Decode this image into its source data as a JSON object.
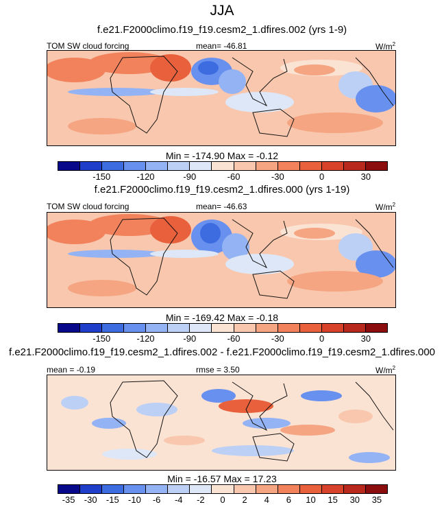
{
  "figure": {
    "season": "JJA"
  },
  "panels": [
    {
      "case": "f.e21.F2000climo.f19_f19.cesm2_1.dfires.002 (yrs 1-9)",
      "variable": "TOM SW cloud forcing",
      "mean_label": "mean= -46.81",
      "units": "W/m",
      "units_exp": "2",
      "stats": "Min = -174.90 Max =  -0.12",
      "colorbar_ticks": [
        "-150",
        "-120",
        "-90",
        "-60",
        "-30",
        "0",
        "30"
      ]
    },
    {
      "case": "f.e21.F2000climo.f19_f19.cesm2_1.dfires.000 (yrs 1-19)",
      "variable": "TOM SW cloud forcing",
      "mean_label": "mean= -46.63",
      "units": "W/m",
      "units_exp": "2",
      "stats": "Min = -169.42 Max =  -0.18",
      "colorbar_ticks": [
        "-150",
        "-120",
        "-90",
        "-60",
        "-30",
        "0",
        "30"
      ]
    },
    {
      "case": "f.e21.F2000climo.f19_f19.cesm2_1.dfires.002 - f.e21.F2000climo.f19_f19.cesm2_1.dfires.000",
      "mean_label": "mean =  -0.19",
      "rmse_label": "rmse =   3.50",
      "units": "W/m",
      "units_exp": "2",
      "stats": "Min = -16.57 Max =  17.23",
      "colorbar_ticks": [
        "-35",
        "-30",
        "-15",
        "-10",
        "-6",
        "-4",
        "-2",
        "0",
        "2",
        "4",
        "6",
        "10",
        "15",
        "30",
        "35"
      ]
    }
  ],
  "colors": {
    "palette": [
      "#08088a",
      "#1f3ec9",
      "#3c6ce0",
      "#6890ee",
      "#93b3f4",
      "#bcd0f6",
      "#dde7f7",
      "#fbe3d4",
      "#f8c7ad",
      "#f5a582",
      "#f1825c",
      "#e9603c",
      "#d9422a",
      "#b8281c",
      "#8c0d0d"
    ],
    "coast": "#111111"
  }
}
